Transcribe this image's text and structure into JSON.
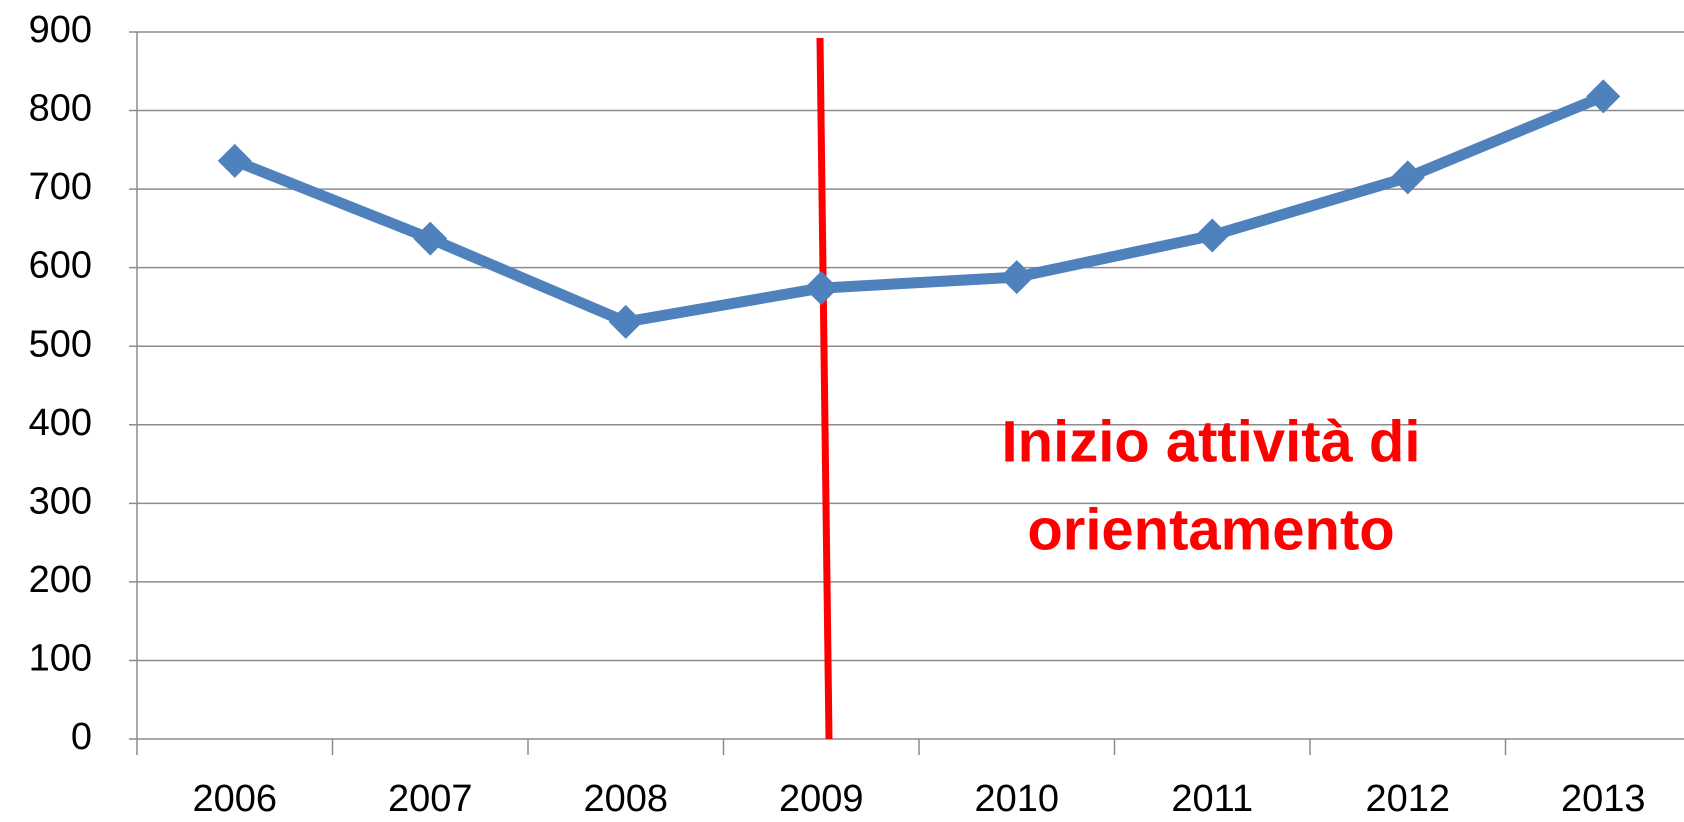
{
  "chart_data": {
    "type": "line",
    "categories": [
      "2006",
      "2007",
      "2008",
      "2009",
      "2010",
      "2011",
      "2012",
      "2013"
    ],
    "series": [
      {
        "name": "Series 1",
        "color": "#4f81bd",
        "values": [
          736,
          637,
          531,
          574,
          588,
          641,
          715,
          818
        ]
      }
    ],
    "ylim": [
      0,
      900
    ],
    "yticks": [
      0,
      100,
      200,
      300,
      400,
      500,
      600,
      700,
      800,
      900
    ],
    "grid": true,
    "annotation": [
      "Inizio attività di",
      "orientamento"
    ]
  }
}
